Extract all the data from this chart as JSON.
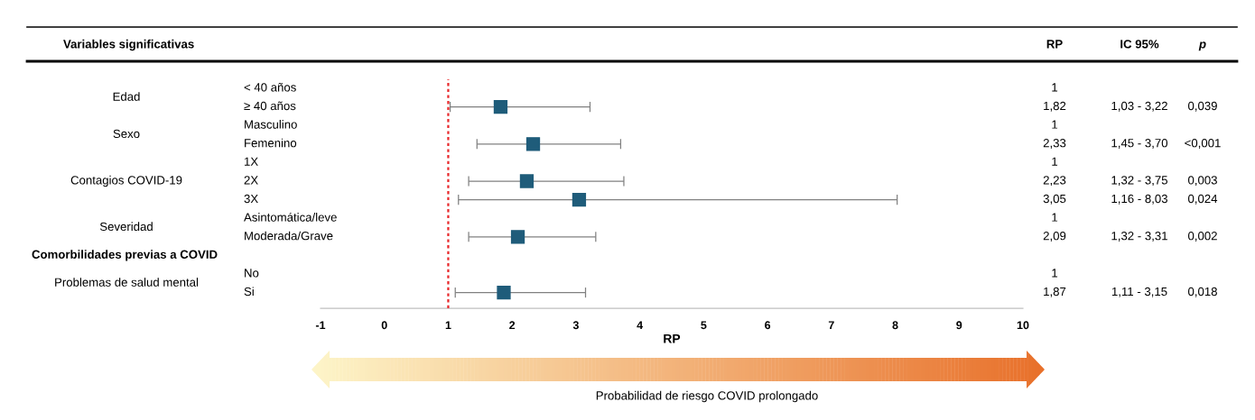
{
  "chart_data": [
    {
      "type": "scatter",
      "orientation": "horizontal",
      "ylabel": "Variables significativas",
      "xlabel": "RP",
      "categories": [
        "< 40 años",
        "≥ 40 años",
        "Masculino",
        "Femenino",
        "1X",
        "2X",
        "3X",
        "Asintomática/leve",
        "Moderada/Grave",
        null,
        "No",
        "Si"
      ],
      "series": [
        {
          "color": "#1f5c7a",
          "values": [
            null,
            1.82,
            null,
            2.33,
            null,
            2.23,
            3.05,
            null,
            2.09,
            null,
            null,
            1.87
          ],
          "errors": [
            null,
            [
              1.03,
              3.22
            ],
            null,
            [
              1.45,
              3.7
            ],
            null,
            [
              1.32,
              3.75
            ],
            [
              1.16,
              8.03
            ],
            null,
            [
              1.32,
              3.31
            ],
            null,
            null,
            [
              1.11,
              3.15
            ]
          ]
        }
      ],
      "marker": "square",
      "xlim": [
        -1,
        10
      ],
      "xticks": [
        -1,
        0,
        1,
        2,
        3,
        4,
        5,
        6,
        7,
        8,
        9,
        10
      ],
      "ref_lines": [
        {
          "axis": "x",
          "value": 1,
          "color": "#e8272a",
          "line_style": "dotted"
        }
      ],
      "annotations": [
        "Edad",
        "Sexo",
        "Contagios COVID-19",
        "Severidad",
        "Comorbilidades previas a COVID",
        "Problemas de salud mental",
        "Probabilidad de riesgo COVID prolongado"
      ]
    },
    {
      "type": "other",
      "categories": [
        "RP",
        "IC 95%",
        "p"
      ],
      "cell_labels": [
        [
          "1",
          null,
          null
        ],
        [
          "1,82",
          "1,03 - 3,22",
          "0,039"
        ],
        [
          "1",
          null,
          null
        ],
        [
          "2,33",
          "1,45 - 3,70",
          "<0,001"
        ],
        [
          "1",
          null,
          null
        ],
        [
          "2,23",
          "1,32 - 3,75",
          "0,003"
        ],
        [
          "3,05",
          "1,16 - 8,03",
          "0,024"
        ],
        [
          "1",
          null,
          null
        ],
        [
          "2,09",
          "1,32 - 3,31",
          "0,002"
        ],
        [
          null,
          null,
          null
        ],
        [
          "1",
          null,
          null
        ],
        [
          "1,87",
          "1,11 - 3,15",
          "0,018"
        ]
      ]
    }
  ]
}
